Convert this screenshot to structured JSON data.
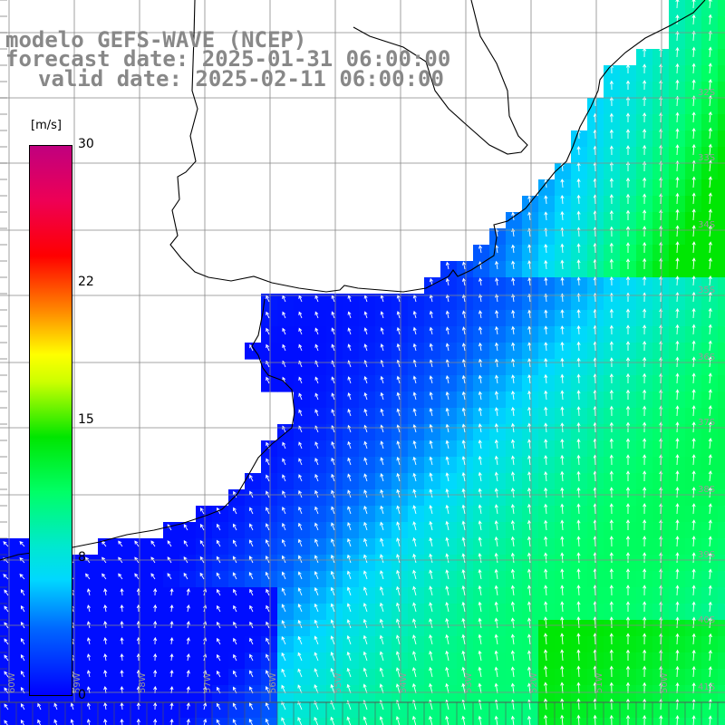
{
  "title": {
    "line1": "modelo GEFS-WAVE (NCEP)",
    "line2": "forecast date: 2025-01-31 06:00:00",
    "line3": "valid date: 2025-02-11 06:00:00"
  },
  "colorbar": {
    "unit": "[m/s]",
    "ticks": [
      "30",
      "22",
      "15",
      "8",
      "0"
    ],
    "tick_values": [
      30,
      22,
      15,
      8,
      0
    ],
    "range": [
      0,
      30
    ]
  },
  "grid_labels": {
    "lon": [
      "60W",
      "59W",
      "58W",
      "57W",
      "56W",
      "55W",
      "54W",
      "53W",
      "52W",
      "51W",
      "50W"
    ],
    "lat": [
      "32S",
      "33S",
      "34S",
      "35S",
      "36S",
      "37S",
      "38S",
      "39S",
      "40S",
      "41S"
    ]
  },
  "colors": {
    "land": "#ffffff",
    "gridline": "#888888",
    "coast": "#000000",
    "arrow": "#ffffff",
    "title_text": "#888888"
  }
}
